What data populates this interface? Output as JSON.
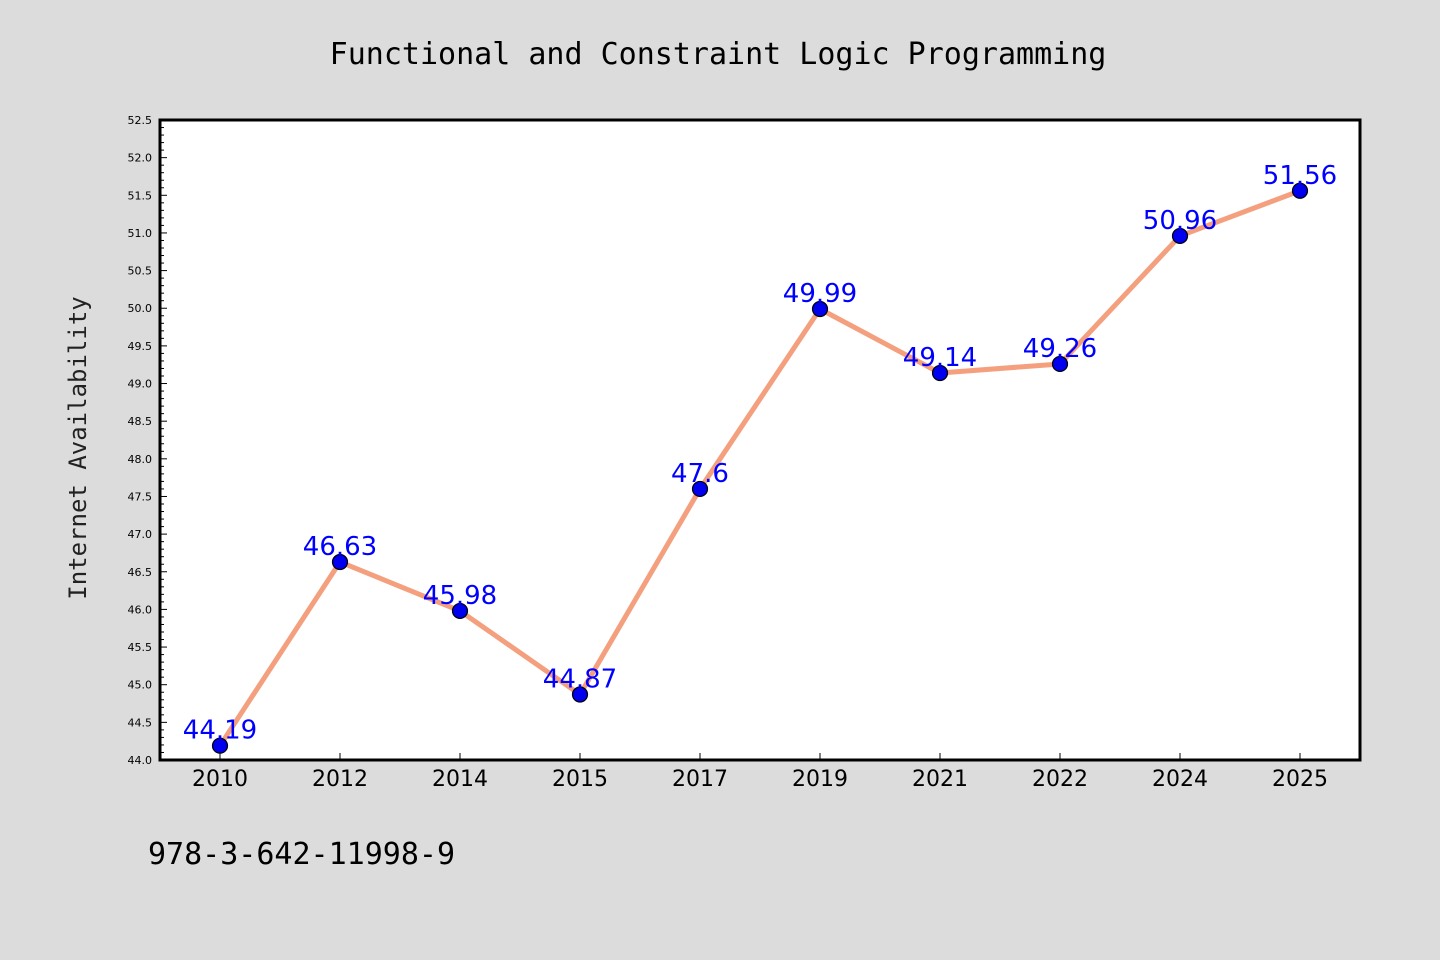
{
  "chart_data": {
    "type": "line",
    "title": "Functional and Constraint Logic Programming",
    "ylabel": "Internet Availability",
    "xlabel": "",
    "footer": "978-3-642-11998-9",
    "categories": [
      "2010",
      "2012",
      "2014",
      "2015",
      "2017",
      "2019",
      "2021",
      "2022",
      "2024",
      "2025"
    ],
    "series": [
      {
        "values": [
          44.19,
          46.63,
          45.98,
          44.87,
          47.6,
          49.99,
          49.14,
          49.26,
          50.96,
          51.56
        ],
        "data_labels": [
          "44.19",
          "46.63",
          "45.98",
          "44.87",
          "47.6",
          "49.99",
          "49.14",
          "49.26",
          "50.96",
          "51.56"
        ]
      }
    ],
    "ylim": [
      44.0,
      52.5
    ],
    "yticks": [
      "44.0",
      "44.5",
      "45.0",
      "45.5",
      "46.0",
      "46.5",
      "47.0",
      "47.5",
      "48.0",
      "48.5",
      "49.0",
      "49.5",
      "50.0",
      "50.5",
      "51.0",
      "51.5",
      "52.0",
      "52.5"
    ],
    "grid": false,
    "colors": {
      "background": "#dcdcdc",
      "plot_area": "#ffffff",
      "line": "#f4a07e",
      "marker": "#0000ee",
      "label": "#0000ff"
    }
  }
}
